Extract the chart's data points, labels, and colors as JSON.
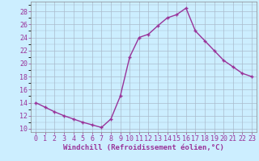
{
  "x": [
    0,
    1,
    2,
    3,
    4,
    5,
    6,
    7,
    8,
    9,
    10,
    11,
    12,
    13,
    14,
    15,
    16,
    17,
    18,
    19,
    20,
    21,
    22,
    23
  ],
  "y": [
    14,
    13.3,
    12.6,
    12.0,
    11.5,
    11.0,
    10.6,
    10.2,
    11.5,
    15.0,
    21.0,
    24.0,
    24.5,
    25.8,
    27.0,
    27.5,
    28.5,
    25.0,
    23.5,
    22.0,
    20.5,
    19.5,
    18.5,
    18.0
  ],
  "line_color": "#993399",
  "marker": "+",
  "background_color": "#cceeff",
  "grid_color": "#aabbcc",
  "xlabel": "Windchill (Refroidissement éolien,°C)",
  "xlim": [
    -0.5,
    23.5
  ],
  "ylim": [
    9.5,
    29.5
  ],
  "yticks": [
    10,
    12,
    14,
    16,
    18,
    20,
    22,
    24,
    26,
    28
  ],
  "xticks": [
    0,
    1,
    2,
    3,
    4,
    5,
    6,
    7,
    8,
    9,
    10,
    11,
    12,
    13,
    14,
    15,
    16,
    17,
    18,
    19,
    20,
    21,
    22,
    23
  ],
  "xlabel_fontsize": 6.5,
  "tick_fontsize": 6.0,
  "line_width": 1.0,
  "marker_size": 3.5
}
